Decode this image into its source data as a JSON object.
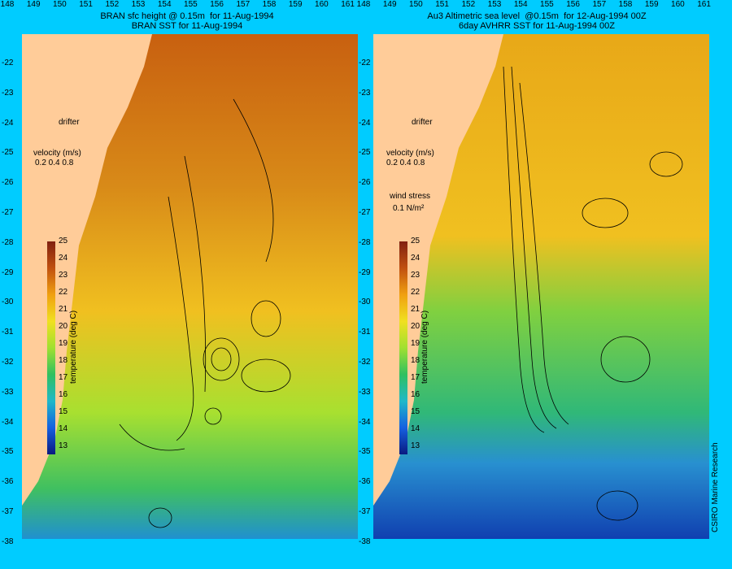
{
  "left_title": "BRAN sfc height @ 0.15m  for 11-Aug-1994\nBRAN SST for 11-Aug-1994",
  "right_title": "Au3 Altimetric sea level  @0.15m  for 12-Aug-1994 00Z\n6day AVHRR SST for 11-Aug-1994 00Z",
  "y_labels": [
    "-22",
    "-23",
    "-24",
    "-25",
    "-26",
    "-27",
    "-28",
    "-29",
    "-30",
    "-31",
    "-32",
    "-33",
    "-34",
    "-35",
    "-36",
    "-37",
    "-38"
  ],
  "x_labels": [
    "148",
    "149",
    "150",
    "151",
    "152",
    "153",
    "154",
    "155",
    "156",
    "157",
    "158",
    "159",
    "160",
    "161"
  ],
  "legend": {
    "drifter": "drifter",
    "velocity": "velocity (m/s)",
    "velocity_scale": "0.2 0.4 0.8",
    "wind_stress": "wind stress",
    "wind_value": "0.1 N/m²"
  },
  "colorbar": {
    "title": "temperature (deg C)",
    "ticks": [
      "25",
      "24",
      "23",
      "22",
      "21",
      "20",
      "19",
      "18",
      "17",
      "16",
      "15",
      "14",
      "13"
    ]
  },
  "credit": "CSIRO Marine Research",
  "colors": {
    "background": "#00ccff",
    "land": "#ffcc99",
    "drifter": "#ff00ff"
  }
}
